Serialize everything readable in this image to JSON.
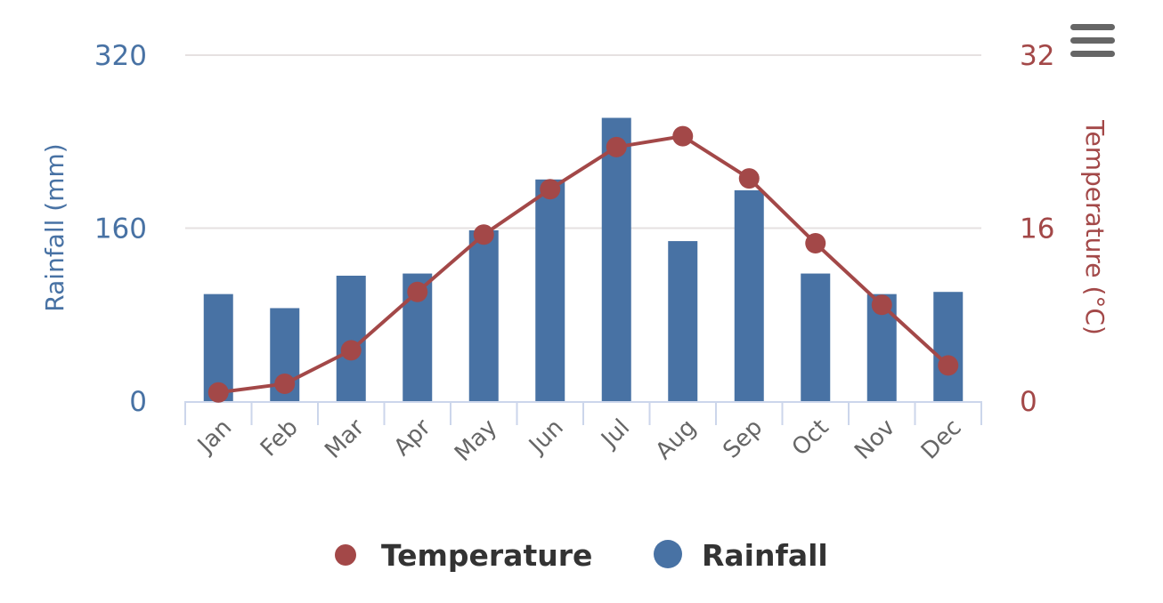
{
  "chart_data": {
    "type": "bar+line",
    "categories": [
      "Jan",
      "Feb",
      "Mar",
      "Apr",
      "May",
      "Jun",
      "Jul",
      "Aug",
      "Sep",
      "Oct",
      "Nov",
      "Dec"
    ],
    "series": [
      {
        "name": "Rainfall",
        "type": "bar",
        "axis": "left",
        "color": "#4872a4",
        "values": [
          99,
          86,
          116,
          118,
          158,
          205,
          262,
          148,
          195,
          118,
          99,
          101
        ]
      },
      {
        "name": "Temperature",
        "type": "line",
        "axis": "right",
        "color": "#a34848",
        "values": [
          0.8,
          1.6,
          4.7,
          10.1,
          15.4,
          19.6,
          23.5,
          24.5,
          20.6,
          14.6,
          8.9,
          3.3
        ]
      }
    ],
    "yaxis_left": {
      "label": "Rainfall (mm)",
      "range": [
        0,
        320
      ],
      "ticks": [
        "0",
        "160",
        "320"
      ]
    },
    "yaxis_right": {
      "label": "Temperature (°C)",
      "range": [
        0,
        32
      ],
      "ticks": [
        "0",
        "16",
        "32"
      ]
    },
    "grid": true,
    "legend": {
      "position": "bottom-center",
      "items": [
        "Temperature",
        "Rainfall"
      ]
    }
  },
  "menu": {
    "icon": "hamburger-menu-icon"
  },
  "colors": {
    "grid": "#e6e1e1",
    "axis": "#ccd6eb",
    "menu": "#666666"
  }
}
